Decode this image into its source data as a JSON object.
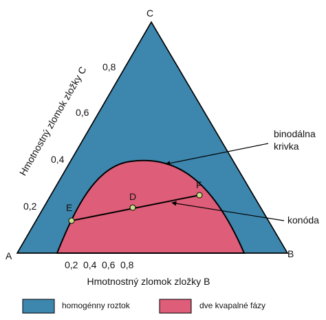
{
  "colors": {
    "homogeneous": "#3d86ad",
    "two_phase": "#de5d79",
    "outline": "#000000",
    "point_fill": "#c6e089"
  },
  "vertices": {
    "a": "A",
    "b": "B",
    "c": "C"
  },
  "axis_c": {
    "label": "Hmotnostný zlomok zložky C",
    "ticks": [
      "0,2",
      "0,4",
      "0,6",
      "0,8"
    ]
  },
  "axis_b": {
    "label": "Hmotnostný zlomok zložky B",
    "ticks": [
      "0,2",
      "0,4",
      "0,6",
      "0,8"
    ]
  },
  "points": {
    "e": "E",
    "d": "D",
    "f": "F"
  },
  "annotations": {
    "binodal_line1": "binodálna",
    "binodal_line2": "krivka",
    "tieline": "konóda"
  },
  "legend": {
    "homogeneous": "homogénny roztok",
    "two_phase": "dve kvapalné fázy"
  }
}
